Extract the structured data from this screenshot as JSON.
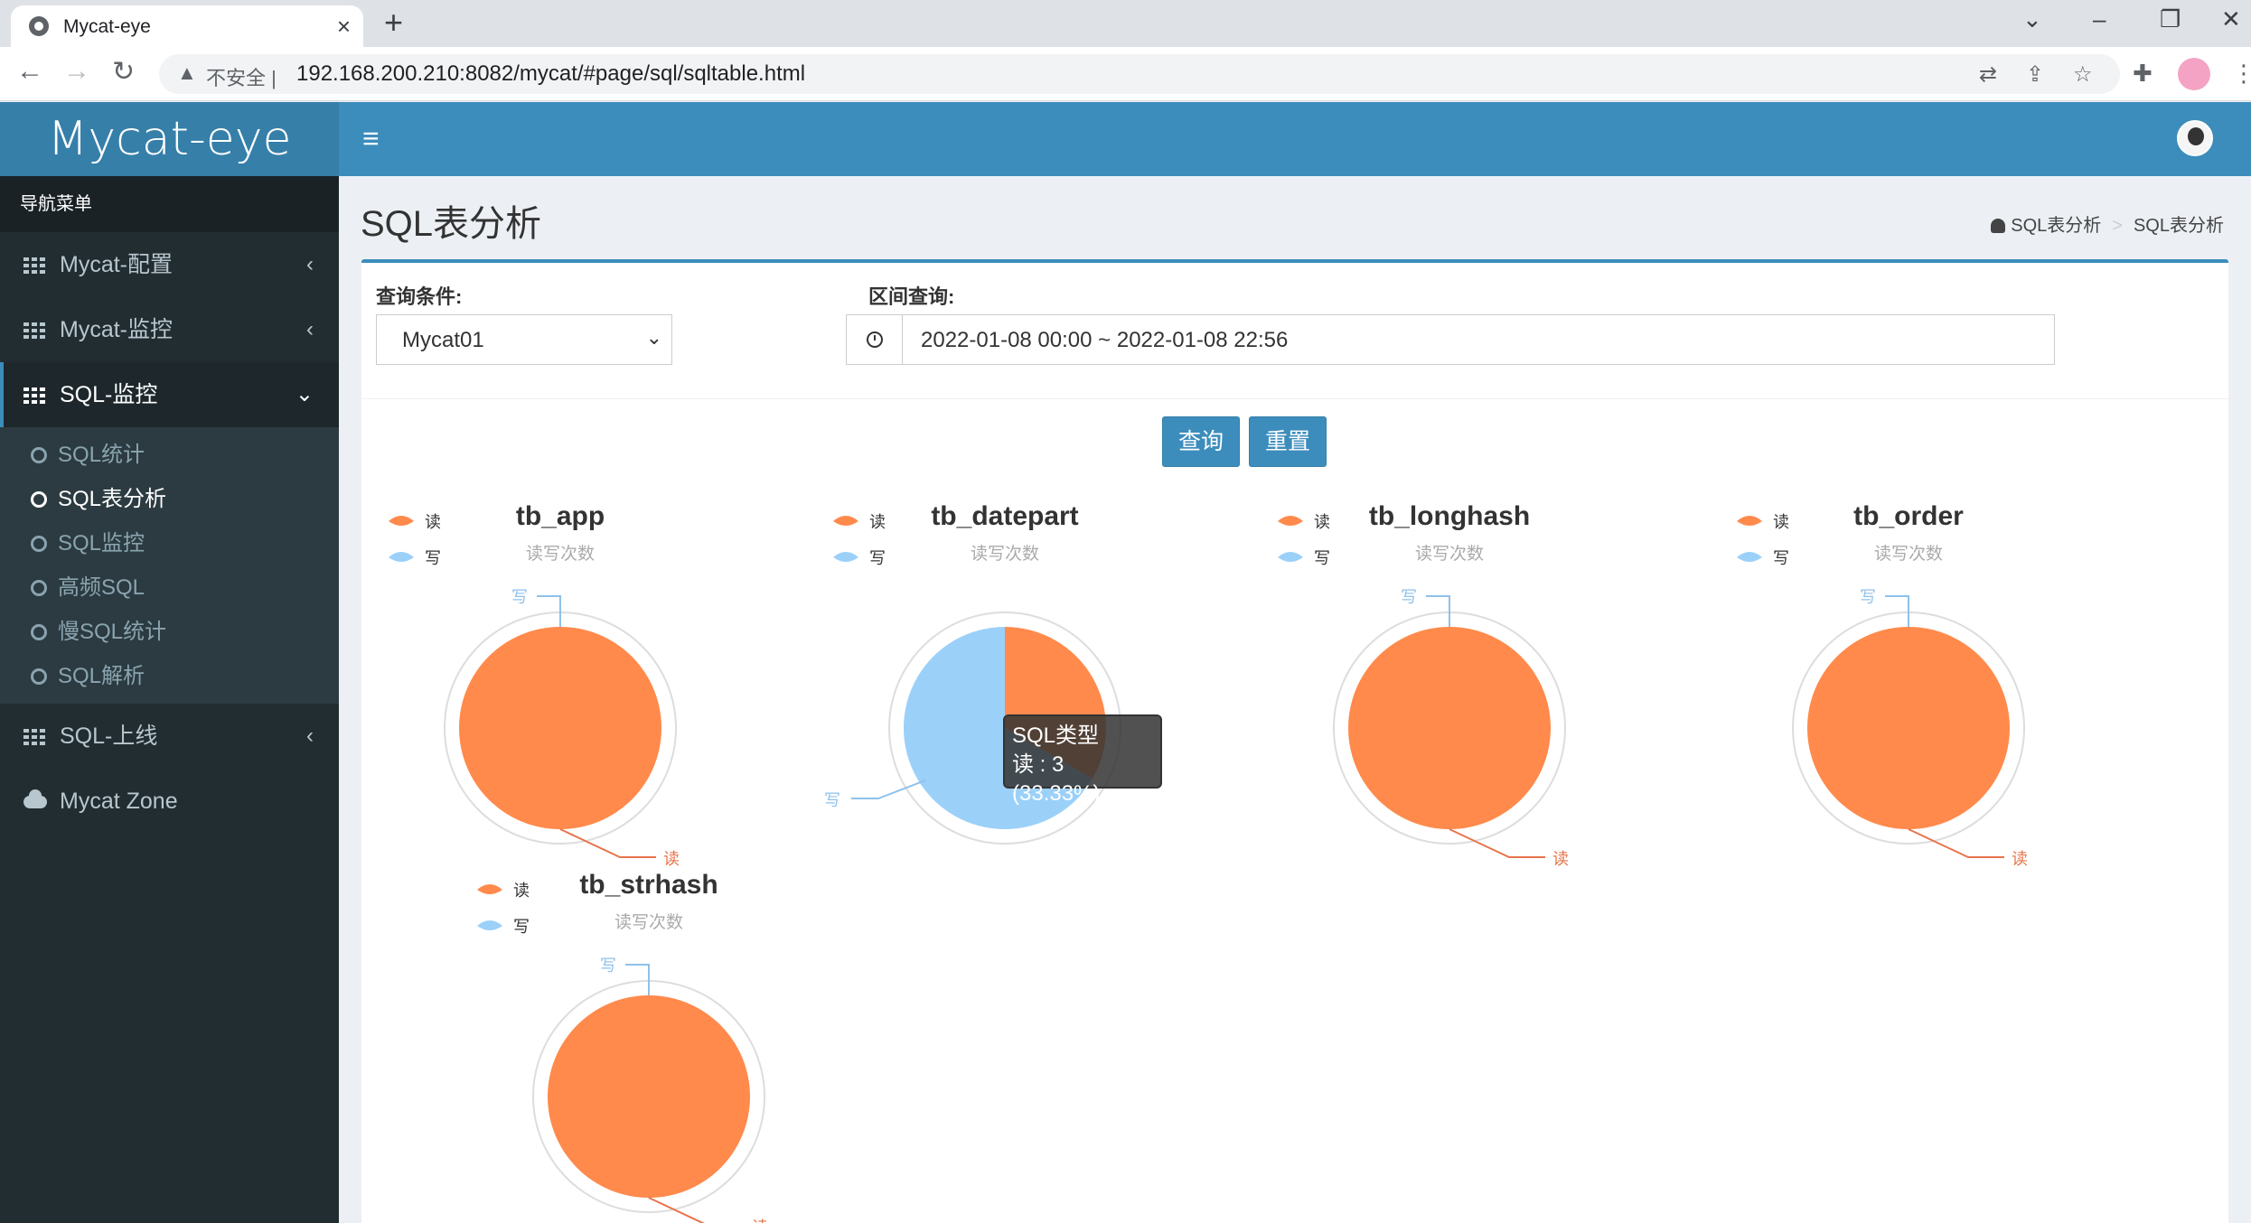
{
  "browser": {
    "tab_title": "Mycat-eye",
    "tab_close": "×",
    "new_tab": "+",
    "insecure_label": "不安全 |",
    "url": "192.168.200.210:8082/mycat/#page/sql/sqltable.html"
  },
  "app": {
    "logo": "Mycat-eye",
    "menu_icon": "≡"
  },
  "sidebar": {
    "header": "导航菜单",
    "items": [
      {
        "label": "Mycat-配置",
        "chevron": "‹"
      },
      {
        "label": "Mycat-监控",
        "chevron": "‹"
      },
      {
        "label": "SQL-监控",
        "chevron": "⌄"
      }
    ],
    "subitems": [
      "SQL统计",
      "SQL表分析",
      "SQL监控",
      "高频SQL",
      "慢SQL统计",
      "SQL解析"
    ],
    "item_online": {
      "label": "SQL-上线",
      "chevron": "‹"
    },
    "zone": "Mycat Zone"
  },
  "page": {
    "title": "SQL表分析",
    "breadcrumb": [
      "SQL表分析",
      "SQL表分析"
    ],
    "breadcrumb_sep": ">"
  },
  "filters": {
    "condition_label": "查询条件:",
    "condition_value": "Mycat01",
    "range_label": "区间查询:",
    "range_value": "2022-01-08 00:00 ~ 2022-01-08 22:56",
    "query_button": "查询",
    "reset_button": "重置"
  },
  "colors": {
    "read": "#ff8a4c",
    "write": "#9bd0f9",
    "accent": "#3c8dbc"
  },
  "chart_data": [
    {
      "type": "pie",
      "title": "tb_app",
      "subtitle": "读写次数",
      "legend": [
        "读",
        "写"
      ],
      "categories": [
        "读",
        "写"
      ],
      "values": [
        1,
        0
      ]
    },
    {
      "type": "pie",
      "title": "tb_datepart",
      "subtitle": "读写次数",
      "legend": [
        "读",
        "写"
      ],
      "categories": [
        "读",
        "写"
      ],
      "values": [
        3,
        6
      ]
    },
    {
      "type": "pie",
      "title": "tb_longhash",
      "subtitle": "读写次数",
      "legend": [
        "读",
        "写"
      ],
      "categories": [
        "读",
        "写"
      ],
      "values": [
        1,
        0
      ]
    },
    {
      "type": "pie",
      "title": "tb_order",
      "subtitle": "读写次数",
      "legend": [
        "读",
        "写"
      ],
      "categories": [
        "读",
        "写"
      ],
      "values": [
        1,
        0
      ]
    },
    {
      "type": "pie",
      "title": "tb_strhash",
      "subtitle": "读写次数",
      "legend": [
        "读",
        "写"
      ],
      "categories": [
        "读",
        "写"
      ],
      "values": [
        1,
        0
      ]
    }
  ],
  "tooltip": {
    "title": "SQL类型",
    "line": "读 : 3 (33.33%)"
  }
}
